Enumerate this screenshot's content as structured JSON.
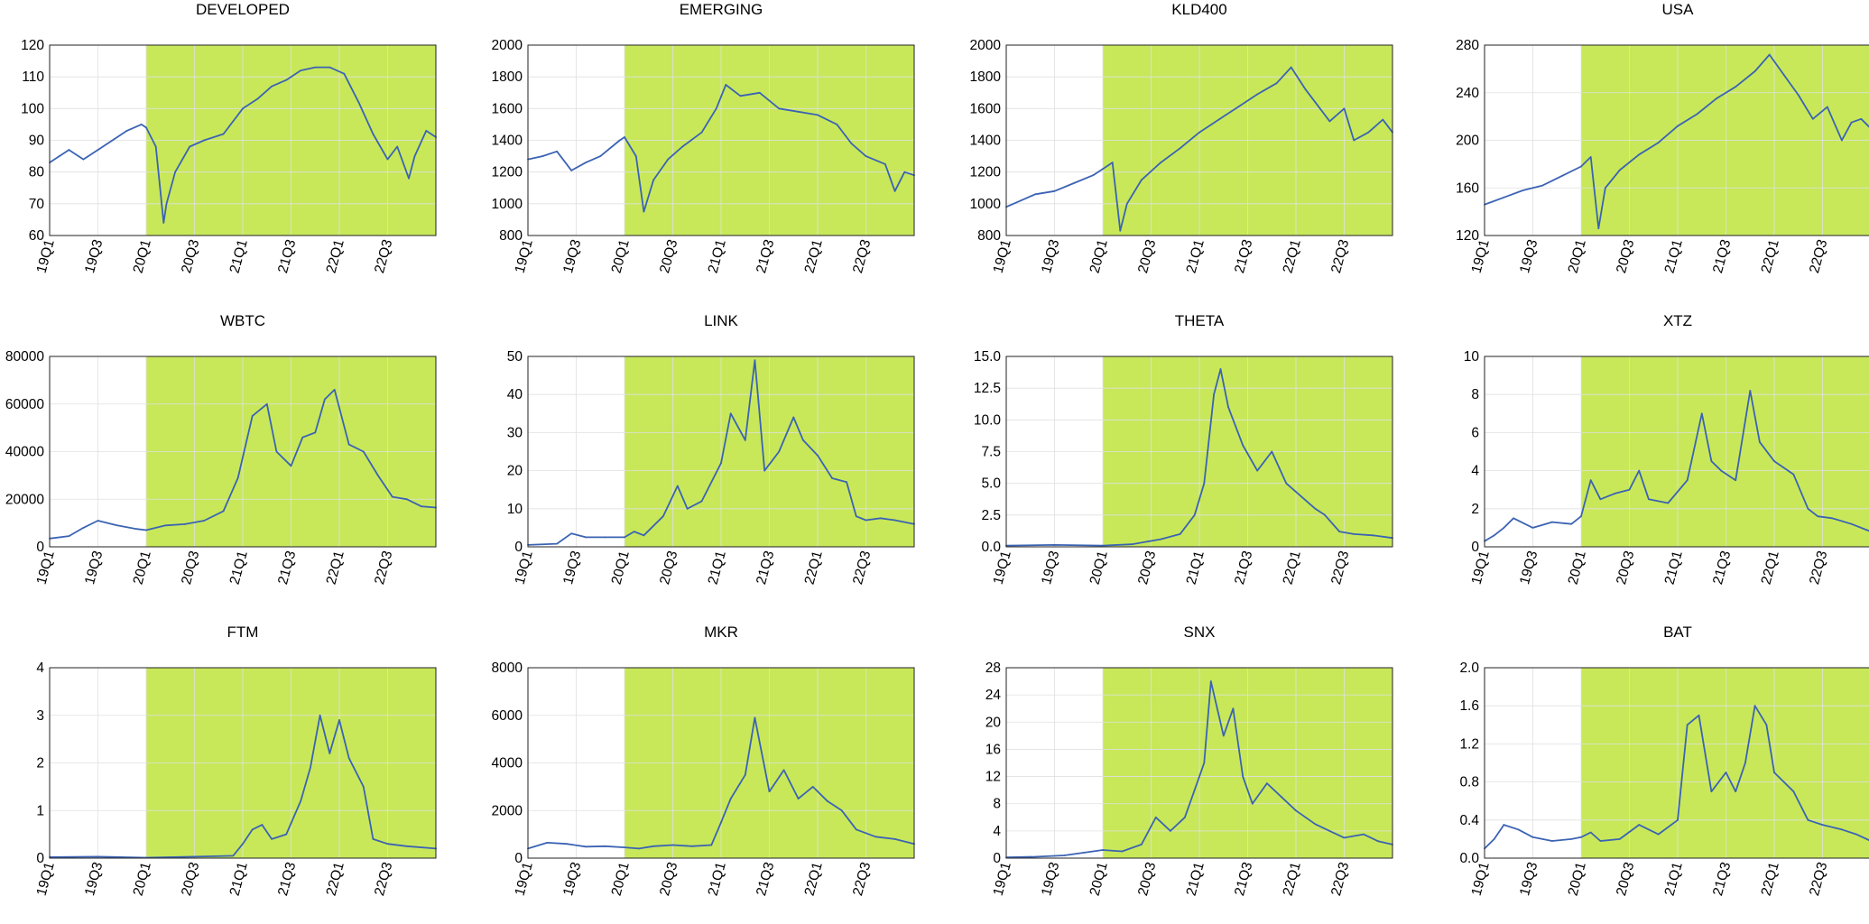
{
  "chart_data": [
    {
      "title": "DEVELOPED",
      "type": "line",
      "yticks": [
        "60",
        "70",
        "80",
        "90",
        "100",
        "110",
        "120"
      ],
      "ylim": [
        60,
        120
      ],
      "xticks": [
        "19Q1",
        "19Q3",
        "20Q1",
        "20Q3",
        "21Q1",
        "21Q3",
        "22Q1",
        "22Q3"
      ],
      "xlim": [
        2019.0,
        2023.0
      ],
      "shaded_from": 2020.0,
      "grid": true,
      "series": [
        {
          "x": [
            2019.0,
            2019.1,
            2019.2,
            2019.35,
            2019.5,
            2019.65,
            2019.8,
            2019.95,
            2020.0,
            2020.1,
            2020.18,
            2020.21,
            2020.3,
            2020.45,
            2020.6,
            2020.8,
            2021.0,
            2021.15,
            2021.3,
            2021.45,
            2021.6,
            2021.75,
            2021.9,
            2022.05,
            2022.2,
            2022.35,
            2022.5,
            2022.6,
            2022.72,
            2022.78,
            2022.9,
            2023.0
          ],
          "values": [
            83,
            85,
            87,
            84,
            87,
            90,
            93,
            95,
            94,
            88,
            64,
            70,
            80,
            88,
            90,
            92,
            100,
            103,
            107,
            109,
            112,
            113,
            113,
            111,
            102,
            92,
            84,
            88,
            78,
            85,
            93,
            91
          ]
        }
      ]
    },
    {
      "title": "EMERGING",
      "type": "line",
      "yticks": [
        "800",
        "1000",
        "1200",
        "1400",
        "1600",
        "1800",
        "2000"
      ],
      "ylim": [
        800,
        2000
      ],
      "xticks": [
        "19Q1",
        "19Q3",
        "20Q1",
        "20Q3",
        "21Q1",
        "21Q3",
        "22Q1",
        "22Q3"
      ],
      "xlim": [
        2019.0,
        2023.0
      ],
      "shaded_from": 2020.0,
      "grid": true,
      "series": [
        {
          "x": [
            2019.0,
            2019.15,
            2019.3,
            2019.45,
            2019.6,
            2019.75,
            2019.95,
            2020.0,
            2020.12,
            2020.2,
            2020.3,
            2020.45,
            2020.6,
            2020.8,
            2020.95,
            2021.05,
            2021.2,
            2021.4,
            2021.6,
            2021.8,
            2022.0,
            2022.2,
            2022.35,
            2022.5,
            2022.7,
            2022.8,
            2022.9,
            2023.0
          ],
          "values": [
            1280,
            1300,
            1330,
            1210,
            1260,
            1300,
            1400,
            1420,
            1300,
            950,
            1150,
            1280,
            1360,
            1450,
            1600,
            1750,
            1680,
            1700,
            1600,
            1580,
            1560,
            1500,
            1380,
            1300,
            1250,
            1080,
            1200,
            1180
          ]
        }
      ]
    },
    {
      "title": "KLD400",
      "type": "line",
      "yticks": [
        "800",
        "1000",
        "1200",
        "1400",
        "1600",
        "1800",
        "2000"
      ],
      "ylim": [
        800,
        2000
      ],
      "xticks": [
        "19Q1",
        "19Q3",
        "20Q1",
        "20Q3",
        "21Q1",
        "21Q3",
        "22Q1",
        "22Q3"
      ],
      "xlim": [
        2019.0,
        2023.0
      ],
      "shaded_from": 2020.0,
      "grid": true,
      "series": [
        {
          "x": [
            2019.0,
            2019.15,
            2019.3,
            2019.5,
            2019.7,
            2019.9,
            2020.0,
            2020.1,
            2020.18,
            2020.25,
            2020.4,
            2020.6,
            2020.8,
            2021.0,
            2021.2,
            2021.4,
            2021.6,
            2021.8,
            2021.95,
            2022.1,
            2022.2,
            2022.35,
            2022.5,
            2022.6,
            2022.75,
            2022.9,
            2023.0
          ],
          "values": [
            980,
            1020,
            1060,
            1080,
            1130,
            1180,
            1220,
            1260,
            830,
            1000,
            1150,
            1260,
            1350,
            1450,
            1530,
            1610,
            1690,
            1760,
            1860,
            1720,
            1640,
            1520,
            1600,
            1400,
            1450,
            1530,
            1450
          ]
        }
      ]
    },
    {
      "title": "USA",
      "type": "line",
      "yticks": [
        "120",
        "160",
        "200",
        "240",
        "280"
      ],
      "ylim": [
        120,
        280
      ],
      "xticks": [
        "19Q1",
        "19Q3",
        "20Q1",
        "20Q3",
        "21Q1",
        "21Q3",
        "22Q1",
        "22Q3"
      ],
      "xlim": [
        2019.0,
        2023.0
      ],
      "shaded_from": 2020.0,
      "grid": true,
      "series": [
        {
          "x": [
            2019.0,
            2019.2,
            2019.4,
            2019.6,
            2019.8,
            2020.0,
            2020.1,
            2020.18,
            2020.25,
            2020.4,
            2020.6,
            2020.8,
            2021.0,
            2021.2,
            2021.4,
            2021.6,
            2021.8,
            2021.95,
            2022.1,
            2022.25,
            2022.4,
            2022.55,
            2022.7,
            2022.8,
            2022.9,
            2023.0
          ],
          "values": [
            146,
            152,
            158,
            162,
            170,
            178,
            186,
            126,
            160,
            175,
            188,
            198,
            212,
            222,
            235,
            245,
            258,
            272,
            255,
            238,
            218,
            228,
            200,
            215,
            218,
            210
          ]
        }
      ]
    },
    {
      "title": "WBTC",
      "type": "line",
      "yticks": [
        "0",
        "20000",
        "40000",
        "60000",
        "80000"
      ],
      "ylim": [
        0,
        80000
      ],
      "xticks": [
        "19Q1",
        "19Q3",
        "20Q1",
        "20Q3",
        "21Q1",
        "21Q3",
        "22Q1",
        "22Q3"
      ],
      "xlim": [
        2019.0,
        2023.0
      ],
      "shaded_from": 2020.0,
      "grid": true,
      "series": [
        {
          "x": [
            2019.0,
            2019.2,
            2019.35,
            2019.5,
            2019.7,
            2019.9,
            2020.0,
            2020.2,
            2020.4,
            2020.6,
            2020.8,
            2020.95,
            2021.1,
            2021.25,
            2021.35,
            2021.5,
            2021.62,
            2021.75,
            2021.85,
            2021.95,
            2022.1,
            2022.25,
            2022.4,
            2022.55,
            2022.7,
            2022.85,
            2023.0
          ],
          "values": [
            3500,
            4500,
            8000,
            11000,
            9000,
            7500,
            7000,
            9000,
            9500,
            11000,
            15000,
            29000,
            55000,
            60000,
            40000,
            34000,
            46000,
            48000,
            62000,
            66000,
            43000,
            40000,
            30000,
            21000,
            20000,
            17000,
            16500
          ]
        }
      ]
    },
    {
      "title": "LINK",
      "type": "line",
      "yticks": [
        "0",
        "10",
        "20",
        "30",
        "40",
        "50"
      ],
      "ylim": [
        0,
        50
      ],
      "xticks": [
        "19Q1",
        "19Q3",
        "20Q1",
        "20Q3",
        "21Q1",
        "21Q3",
        "22Q1",
        "22Q3"
      ],
      "xlim": [
        2019.0,
        2023.0
      ],
      "shaded_from": 2020.0,
      "grid": true,
      "series": [
        {
          "x": [
            2019.0,
            2019.3,
            2019.45,
            2019.6,
            2019.8,
            2020.0,
            2020.1,
            2020.2,
            2020.4,
            2020.55,
            2020.65,
            2020.8,
            2021.0,
            2021.1,
            2021.25,
            2021.35,
            2021.45,
            2021.6,
            2021.75,
            2021.85,
            2022.0,
            2022.15,
            2022.3,
            2022.4,
            2022.5,
            2022.65,
            2022.8,
            2023.0
          ],
          "values": [
            0.5,
            0.8,
            3.5,
            2.5,
            2.5,
            2.5,
            4.0,
            3.0,
            8,
            16,
            10,
            12,
            22,
            35,
            28,
            49,
            20,
            25,
            34,
            28,
            24,
            18,
            17,
            8,
            7,
            7.5,
            7,
            6
          ]
        }
      ]
    },
    {
      "title": "THETA",
      "type": "line",
      "yticks": [
        "0.0",
        "2.5",
        "5.0",
        "7.5",
        "10.0",
        "12.5",
        "15.0"
      ],
      "ylim": [
        0,
        15
      ],
      "xticks": [
        "19Q1",
        "19Q3",
        "20Q1",
        "20Q3",
        "21Q1",
        "21Q3",
        "22Q1",
        "22Q3"
      ],
      "xlim": [
        2019.0,
        2023.0
      ],
      "shaded_from": 2020.0,
      "grid": true,
      "series": [
        {
          "x": [
            2019.0,
            2019.5,
            2020.0,
            2020.3,
            2020.6,
            2020.8,
            2020.95,
            2021.05,
            2021.15,
            2021.22,
            2021.3,
            2021.45,
            2021.6,
            2021.75,
            2021.9,
            2022.05,
            2022.2,
            2022.3,
            2022.45,
            2022.6,
            2022.8,
            2023.0
          ],
          "values": [
            0.1,
            0.15,
            0.1,
            0.2,
            0.6,
            1.0,
            2.5,
            5,
            12,
            14,
            11,
            8,
            6,
            7.5,
            5,
            4,
            3,
            2.5,
            1.2,
            1.0,
            0.9,
            0.7
          ]
        }
      ]
    },
    {
      "title": "XTZ",
      "type": "line",
      "yticks": [
        "0",
        "2",
        "4",
        "6",
        "8",
        "10"
      ],
      "ylim": [
        0,
        10
      ],
      "xticks": [
        "19Q1",
        "19Q3",
        "20Q1",
        "20Q3",
        "21Q1",
        "21Q3",
        "22Q1",
        "22Q3"
      ],
      "xlim": [
        2019.0,
        2023.0
      ],
      "shaded_from": 2020.0,
      "grid": true,
      "series": [
        {
          "x": [
            2019.0,
            2019.1,
            2019.2,
            2019.3,
            2019.5,
            2019.7,
            2019.9,
            2020.0,
            2020.1,
            2020.2,
            2020.35,
            2020.5,
            2020.6,
            2020.7,
            2020.9,
            2021.1,
            2021.25,
            2021.35,
            2021.45,
            2021.6,
            2021.75,
            2021.85,
            2022.0,
            2022.2,
            2022.35,
            2022.45,
            2022.6,
            2022.8,
            2023.0
          ],
          "values": [
            0.3,
            0.6,
            1.0,
            1.5,
            1.0,
            1.3,
            1.2,
            1.6,
            3.5,
            2.5,
            2.8,
            3.0,
            4.0,
            2.5,
            2.3,
            3.5,
            7.0,
            4.5,
            4.0,
            3.5,
            8.2,
            5.5,
            4.5,
            3.8,
            2.0,
            1.6,
            1.5,
            1.2,
            0.8
          ]
        }
      ]
    },
    {
      "title": "FTM",
      "type": "line",
      "yticks": [
        "0",
        "1",
        "2",
        "3",
        "4"
      ],
      "ylim": [
        0,
        4
      ],
      "xticks": [
        "19Q1",
        "19Q3",
        "20Q1",
        "20Q3",
        "21Q1",
        "21Q3",
        "22Q1",
        "22Q3"
      ],
      "xlim": [
        2019.0,
        2023.0
      ],
      "shaded_from": 2020.0,
      "grid": true,
      "series": [
        {
          "x": [
            2019.0,
            2019.5,
            2020.0,
            2020.5,
            2020.9,
            2021.0,
            2021.1,
            2021.2,
            2021.3,
            2021.45,
            2021.6,
            2021.7,
            2021.8,
            2021.9,
            2022.0,
            2022.1,
            2022.25,
            2022.35,
            2022.5,
            2022.7,
            2023.0
          ],
          "values": [
            0.02,
            0.03,
            0.01,
            0.03,
            0.05,
            0.3,
            0.6,
            0.7,
            0.4,
            0.5,
            1.2,
            1.9,
            3.0,
            2.2,
            2.9,
            2.1,
            1.5,
            0.4,
            0.3,
            0.25,
            0.2
          ]
        }
      ]
    },
    {
      "title": "MKR",
      "type": "line",
      "yticks": [
        "0",
        "2000",
        "4000",
        "6000",
        "8000"
      ],
      "ylim": [
        0,
        8000
      ],
      "xticks": [
        "19Q1",
        "19Q3",
        "20Q1",
        "20Q3",
        "21Q1",
        "21Q3",
        "22Q1",
        "22Q3"
      ],
      "xlim": [
        2019.0,
        2023.0
      ],
      "shaded_from": 2020.0,
      "grid": true,
      "series": [
        {
          "x": [
            2019.0,
            2019.2,
            2019.4,
            2019.6,
            2019.8,
            2020.0,
            2020.15,
            2020.3,
            2020.5,
            2020.7,
            2020.9,
            2021.0,
            2021.1,
            2021.25,
            2021.35,
            2021.5,
            2021.65,
            2021.8,
            2021.95,
            2022.1,
            2022.25,
            2022.4,
            2022.6,
            2022.8,
            2023.0
          ],
          "values": [
            400,
            650,
            600,
            480,
            500,
            450,
            400,
            500,
            550,
            500,
            550,
            1500,
            2500,
            3500,
            5900,
            2800,
            3700,
            2500,
            3000,
            2400,
            2000,
            1200,
            900,
            800,
            600
          ]
        }
      ]
    },
    {
      "title": "SNX",
      "type": "line",
      "yticks": [
        "0",
        "4",
        "8",
        "12",
        "16",
        "20",
        "24",
        "28"
      ],
      "ylim": [
        0,
        28
      ],
      "xticks": [
        "19Q1",
        "19Q3",
        "20Q1",
        "20Q3",
        "21Q1",
        "21Q3",
        "22Q1",
        "22Q3"
      ],
      "xlim": [
        2019.0,
        2023.0
      ],
      "shaded_from": 2020.0,
      "grid": true,
      "series": [
        {
          "x": [
            2019.0,
            2019.3,
            2019.6,
            2019.8,
            2020.0,
            2020.2,
            2020.4,
            2020.55,
            2020.7,
            2020.85,
            2020.95,
            2021.05,
            2021.12,
            2021.25,
            2021.35,
            2021.45,
            2021.55,
            2021.7,
            2021.85,
            2022.0,
            2022.2,
            2022.35,
            2022.5,
            2022.7,
            2022.85,
            2023.0
          ],
          "values": [
            0.1,
            0.2,
            0.4,
            0.8,
            1.2,
            1.0,
            2.0,
            6.0,
            4.0,
            6.0,
            10,
            14,
            26,
            18,
            22,
            12,
            8,
            11,
            9,
            7,
            5,
            4,
            3,
            3.5,
            2.5,
            2
          ]
        }
      ]
    },
    {
      "title": "BAT",
      "type": "line",
      "yticks": [
        "0.0",
        "0.4",
        "0.8",
        "1.2",
        "1.6",
        "2.0"
      ],
      "ylim": [
        0,
        2.0
      ],
      "xticks": [
        "19Q1",
        "19Q3",
        "20Q1",
        "20Q3",
        "21Q1",
        "21Q3",
        "22Q1",
        "22Q3"
      ],
      "xlim": [
        2019.0,
        2023.0
      ],
      "shaded_from": 2020.0,
      "grid": true,
      "series": [
        {
          "x": [
            2019.0,
            2019.1,
            2019.2,
            2019.35,
            2019.5,
            2019.7,
            2019.9,
            2020.0,
            2020.1,
            2020.2,
            2020.4,
            2020.6,
            2020.8,
            2021.0,
            2021.1,
            2021.22,
            2021.35,
            2021.5,
            2021.6,
            2021.7,
            2021.8,
            2021.92,
            2022.0,
            2022.1,
            2022.2,
            2022.35,
            2022.5,
            2022.7,
            2022.85,
            2023.0
          ],
          "values": [
            0.1,
            0.2,
            0.35,
            0.3,
            0.22,
            0.18,
            0.2,
            0.22,
            0.27,
            0.18,
            0.2,
            0.35,
            0.25,
            0.4,
            1.4,
            1.5,
            0.7,
            0.9,
            0.7,
            1.0,
            1.6,
            1.4,
            0.9,
            0.8,
            0.7,
            0.4,
            0.35,
            0.3,
            0.25,
            0.18
          ]
        }
      ]
    }
  ]
}
